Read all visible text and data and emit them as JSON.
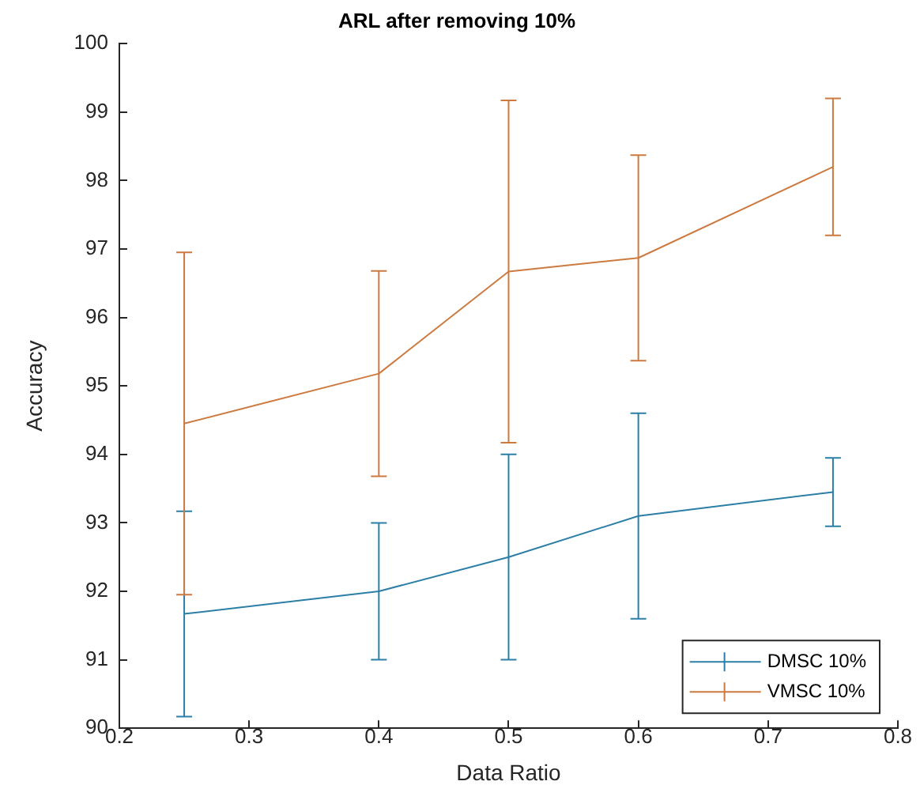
{
  "chart_data": {
    "type": "line",
    "title": "ARL after removing 10%",
    "xlabel": "Data Ratio",
    "ylabel": "Accuracy",
    "x": [
      0.25,
      0.4,
      0.5,
      0.6,
      0.75
    ],
    "series": [
      {
        "name": "DMSC 10%",
        "color": "#2b7fa6",
        "values": [
          91.67,
          92,
          92.5,
          93.1,
          93.45
        ],
        "errors": [
          1.5,
          1,
          1.5,
          1.5,
          0.5
        ]
      },
      {
        "name": "VMSC 10%",
        "color": "#cc7a40",
        "values": [
          94.45,
          95.18,
          96.67,
          96.87,
          98.2
        ],
        "errors": [
          2.5,
          1.5,
          2.5,
          1.5,
          1
        ]
      }
    ],
    "xlim": [
      0.2,
      0.8
    ],
    "xticks": [
      0.2,
      0.3,
      0.4,
      0.5,
      0.6,
      0.7,
      0.8
    ],
    "ylim": [
      90,
      100
    ],
    "yticks": [
      90,
      91,
      92,
      93,
      94,
      95,
      96,
      97,
      98,
      99,
      100
    ],
    "grid": false,
    "legend": "bottom right",
    "marker": "none",
    "line_style": "solid"
  }
}
